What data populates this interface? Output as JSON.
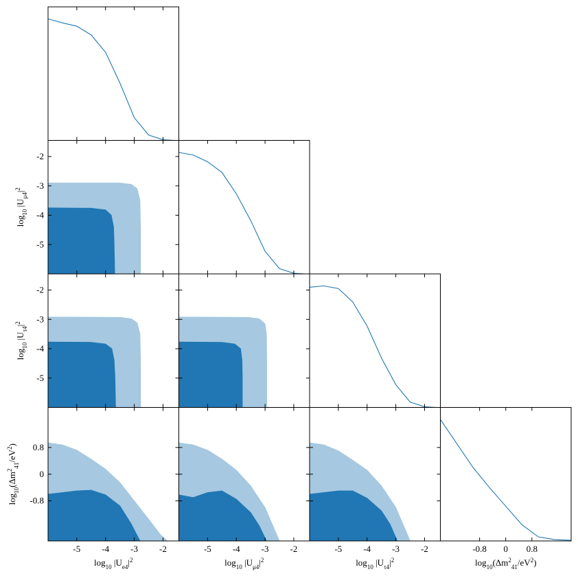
{
  "chart_data": {
    "type": "corner",
    "color": "#1f77b4",
    "contour_colors": [
      "#a6c8e1",
      "#2077b4"
    ],
    "parameters": [
      {
        "label": [
          {
            "text": "log"
          },
          {
            "text": "10",
            "pos": "sub"
          },
          {
            "text": " |U"
          },
          {
            "text": "e4",
            "pos": "sub"
          },
          {
            "text": "|"
          },
          {
            "text": "2",
            "pos": "sup"
          }
        ],
        "lim": [
          -6,
          -1.45
        ],
        "ticks": [
          -5,
          -4,
          -3,
          -2
        ]
      },
      {
        "label": [
          {
            "text": "log"
          },
          {
            "text": "10",
            "pos": "sub"
          },
          {
            "text": " |U"
          },
          {
            "text": "μ4",
            "pos": "sub"
          },
          {
            "text": "|"
          },
          {
            "text": "2",
            "pos": "sup"
          }
        ],
        "lim": [
          -6,
          -1.45
        ],
        "ticks": [
          -5,
          -4,
          -3,
          -2
        ]
      },
      {
        "label": [
          {
            "text": "log"
          },
          {
            "text": "10",
            "pos": "sub"
          },
          {
            "text": " |U"
          },
          {
            "text": "τ4",
            "pos": "sub"
          },
          {
            "text": "|"
          },
          {
            "text": "2",
            "pos": "sup"
          }
        ],
        "lim": [
          -6,
          -1.45
        ],
        "ticks": [
          -5,
          -4,
          -3,
          -2
        ]
      },
      {
        "label": [
          {
            "text": "log"
          },
          {
            "text": "10",
            "pos": "sub"
          },
          {
            "text": "(Δm"
          },
          {
            "text": "2",
            "pos": "sup"
          },
          {
            "text": "41",
            "pos": "sub"
          },
          {
            "text": "/eV"
          },
          {
            "text": "2",
            "pos": "sup"
          },
          {
            "text": ")"
          }
        ],
        "lim": [
          -2,
          2
        ],
        "ticks": [
          -0.8,
          0,
          0.8
        ]
      }
    ],
    "diagonal": [
      {
        "ylim": [
          0,
          1
        ],
        "x": [
          -6,
          -5.5,
          -5,
          -4.5,
          -4,
          -3.5,
          -3,
          -2.5,
          -2,
          -1.6
        ],
        "values": [
          0.91,
          0.88,
          0.855,
          0.79,
          0.66,
          0.43,
          0.17,
          0.04,
          0.005,
          0
        ]
      },
      {
        "ylim": [
          0,
          1
        ],
        "x": [
          -6,
          -5.5,
          -5,
          -4.5,
          -4,
          -3.5,
          -3,
          -2.5,
          -2,
          -1.6
        ],
        "values": [
          0.91,
          0.89,
          0.84,
          0.76,
          0.6,
          0.4,
          0.17,
          0.04,
          0.005,
          0
        ]
      },
      {
        "ylim": [
          0,
          1
        ],
        "x": [
          -6,
          -5.5,
          -5,
          -4.5,
          -4,
          -3.5,
          -3,
          -2.5,
          -2,
          -1.6
        ],
        "values": [
          0.9,
          0.91,
          0.89,
          0.79,
          0.61,
          0.37,
          0.17,
          0.04,
          0.005,
          0
        ]
      },
      {
        "ylim": [
          0,
          1
        ],
        "x": [
          -2,
          -1.5,
          -1,
          -0.5,
          0,
          0.5,
          1,
          1.5,
          2
        ],
        "values": [
          0.91,
          0.73,
          0.55,
          0.4,
          0.26,
          0.12,
          0.03,
          0.01,
          0.005
        ]
      }
    ],
    "contours": [
      {
        "xparam": 0,
        "yparam": 1,
        "levels": [
          {
            "x": [
              -6,
              -6,
              -3.5,
              -3.1,
              -2.9,
              -2.8,
              -2.78,
              -2.78
            ],
            "y": [
              -6,
              -2.9,
              -2.9,
              -2.95,
              -3.1,
              -3.5,
              -4.5,
              -6
            ]
          },
          {
            "x": [
              -6,
              -6,
              -4.5,
              -4.0,
              -3.8,
              -3.72,
              -3.7,
              -3.68
            ],
            "y": [
              -6,
              -3.75,
              -3.76,
              -3.82,
              -4.0,
              -4.4,
              -5,
              -6
            ]
          }
        ]
      },
      {
        "xparam": 0,
        "yparam": 2,
        "levels": [
          {
            "x": [
              -6,
              -6,
              -3.5,
              -3.1,
              -2.9,
              -2.8,
              -2.78,
              -2.78
            ],
            "y": [
              -6,
              -2.92,
              -2.93,
              -2.98,
              -3.12,
              -3.5,
              -4.5,
              -6
            ]
          },
          {
            "x": [
              -6,
              -6,
              -4.5,
              -4.0,
              -3.78,
              -3.7,
              -3.67,
              -3.65
            ],
            "y": [
              -6,
              -3.77,
              -3.78,
              -3.84,
              -4.0,
              -4.4,
              -5,
              -6
            ]
          }
        ]
      },
      {
        "xparam": 1,
        "yparam": 2,
        "levels": [
          {
            "x": [
              -6,
              -6,
              -3.6,
              -3.2,
              -3.0,
              -2.95,
              -2.94,
              -2.94
            ],
            "y": [
              -6,
              -2.92,
              -2.93,
              -2.98,
              -3.15,
              -3.5,
              -4.5,
              -6
            ]
          },
          {
            "x": [
              -6,
              -6,
              -4.5,
              -4.05,
              -3.85,
              -3.8,
              -3.79,
              -3.79
            ],
            "y": [
              -6,
              -3.77,
              -3.78,
              -3.84,
              -4.0,
              -4.4,
              -5,
              -6
            ]
          }
        ]
      },
      {
        "xparam": 0,
        "yparam": 3,
        "levels": [
          {
            "x": [
              -6,
              -5.5,
              -5,
              -4.5,
              -4,
              -3.5,
              -3,
              -2.5,
              -2.1,
              -1.85,
              -6
            ],
            "y": [
              0.94,
              0.88,
              0.72,
              0.45,
              0.15,
              -0.25,
              -0.8,
              -1.35,
              -1.8,
              -2,
              -2
            ]
          },
          {
            "x": [
              -6,
              -5.5,
              -5,
              -4.5,
              -4,
              -3.5,
              -3.1,
              -2.8,
              -6
            ],
            "y": [
              -0.6,
              -0.55,
              -0.5,
              -0.48,
              -0.62,
              -0.95,
              -1.5,
              -2,
              -2
            ]
          }
        ]
      },
      {
        "xparam": 1,
        "yparam": 3,
        "levels": [
          {
            "x": [
              -6,
              -5.5,
              -5,
              -4.5,
              -4,
              -3.5,
              -3,
              -2.8,
              -2.5,
              -6
            ],
            "y": [
              0.94,
              0.88,
              0.72,
              0.45,
              0.12,
              -0.35,
              -1.0,
              -1.4,
              -2,
              -2
            ]
          },
          {
            "x": [
              -6,
              -5.5,
              -5,
              -4.5,
              -4,
              -3.5,
              -3.2,
              -2.95,
              -6
            ],
            "y": [
              -0.62,
              -0.7,
              -0.55,
              -0.5,
              -0.75,
              -1.15,
              -1.55,
              -2,
              -2
            ]
          }
        ]
      },
      {
        "xparam": 2,
        "yparam": 3,
        "levels": [
          {
            "x": [
              -6,
              -5.5,
              -5,
              -4.5,
              -4,
              -3.5,
              -3,
              -2.8,
              -2.5,
              -6
            ],
            "y": [
              0.94,
              0.88,
              0.7,
              0.42,
              0.12,
              -0.35,
              -1.0,
              -1.4,
              -2,
              -2
            ]
          },
          {
            "x": [
              -6,
              -5.5,
              -5,
              -4.5,
              -4,
              -3.5,
              -3.2,
              -2.95,
              -6
            ],
            "y": [
              -0.6,
              -0.55,
              -0.5,
              -0.5,
              -0.72,
              -1.1,
              -1.5,
              -2,
              -2
            ]
          }
        ]
      }
    ]
  }
}
